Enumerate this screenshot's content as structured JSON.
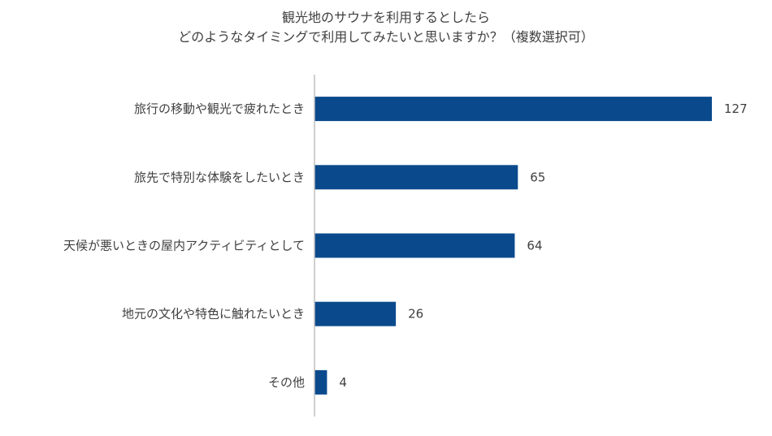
{
  "chart_data": {
    "type": "bar",
    "orientation": "horizontal",
    "title_lines": [
      "観光地のサウナを利用するとしたら",
      "どのようなタイミングで利用してみたいと思いますか？（複数選択可）"
    ],
    "categories": [
      "旅行の移動や観光で疲れたとき",
      "旅先で特別な体験をしたいとき",
      "天候が悪いときの屋内アクティビティとして",
      "地元の文化や特色に触れたいとき",
      "その他"
    ],
    "values": [
      127,
      65,
      64,
      26,
      4
    ],
    "value_labels": [
      "127",
      "65",
      "64",
      "26",
      "4"
    ],
    "xlim": [
      0,
      127
    ],
    "bar_color": "#0a4a8c",
    "axis_color": "#bfbfbf",
    "grid": false,
    "legend": "none"
  }
}
